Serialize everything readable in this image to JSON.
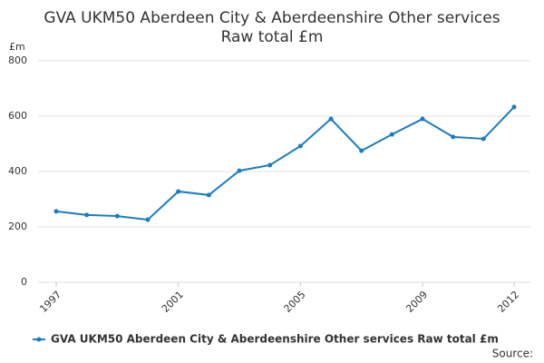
{
  "chart_data": {
    "type": "line",
    "title": [
      "GVA UKM50 Aberdeen City & Aberdeenshire Other services",
      "Raw total £m"
    ],
    "y_label": "£m",
    "x": [
      1997,
      1998,
      1999,
      2000,
      2001,
      2002,
      2003,
      2004,
      2005,
      2006,
      2007,
      2008,
      2009,
      2010,
      2011,
      2012
    ],
    "series": [
      {
        "name": "GVA UKM50 Aberdeen City & Aberdeenshire Other services Raw total £m",
        "color": "#1a7dbf",
        "values": [
          256,
          243,
          239,
          226,
          328,
          315,
          403,
          423,
          492,
          590,
          475,
          534,
          590,
          525,
          518,
          633
        ]
      }
    ],
    "xlim": [
      1997,
      2012
    ],
    "xticks": [
      1997,
      2001,
      2005,
      2009,
      2012
    ],
    "ylim": [
      0,
      800
    ],
    "yticks": [
      0,
      200,
      400,
      600,
      800
    ],
    "grid": true,
    "legend": "bottom-left",
    "source": "Source:"
  }
}
